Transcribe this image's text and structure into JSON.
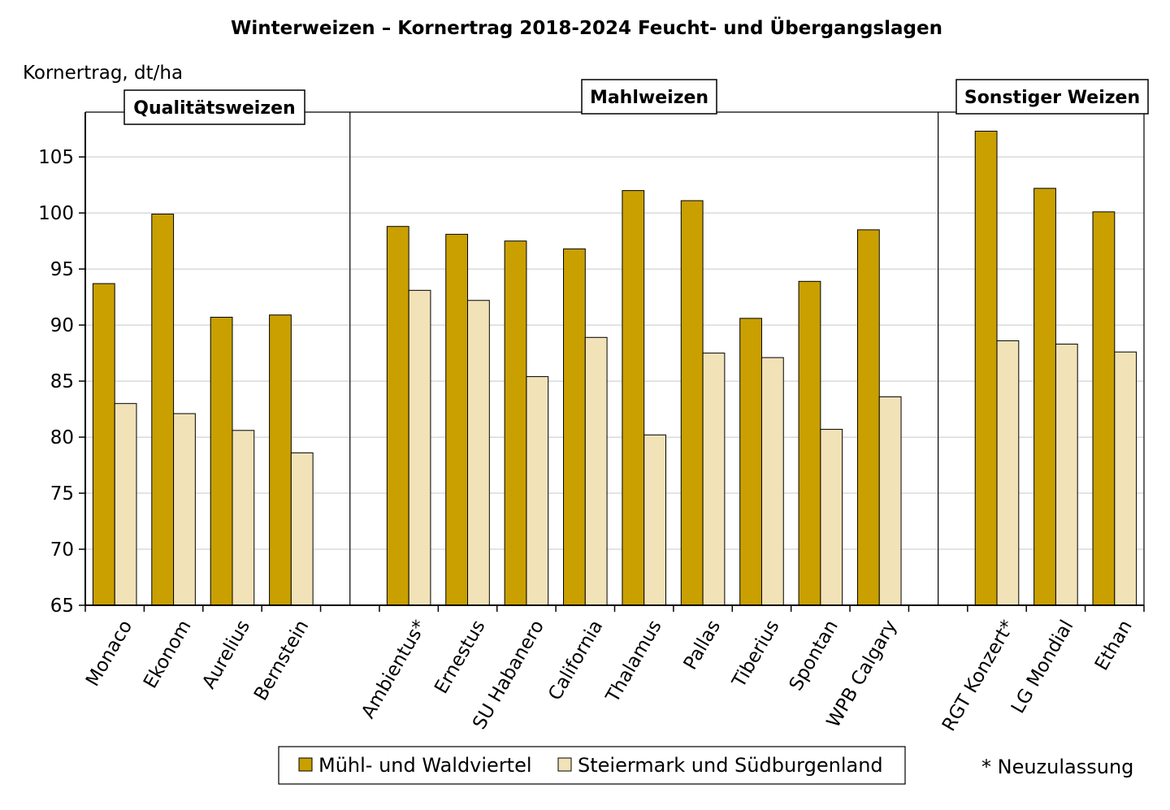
{
  "chart_data": {
    "type": "bar",
    "title": "Winterweizen – Kornertrag 2018-2024 Feucht- und Übergangslagen",
    "ylabel": "Kornertrag, dt/ha",
    "xlabel": "",
    "ylim": [
      65,
      109
    ],
    "yticks": [
      65,
      70,
      75,
      80,
      85,
      90,
      95,
      100,
      105
    ],
    "grid": true,
    "legend_position": "bottom",
    "groups": [
      {
        "label": "Qualitätsweizen",
        "categories": [
          "Monaco",
          "Ekonom",
          "Aurelius",
          "Bernstein"
        ]
      },
      {
        "label": "Mahlweizen",
        "categories": [
          "Ambientus*",
          "Ernestus",
          "SU Habanero",
          "California",
          "Thalamus",
          "Pallas",
          "Tiberius",
          "Spontan",
          "WPB Calgary"
        ]
      },
      {
        "label": "Sonstiger Weizen",
        "categories": [
          "RGT Konzert*",
          "LG Mondial",
          "Ethan"
        ]
      }
    ],
    "categories": [
      "Monaco",
      "Ekonom",
      "Aurelius",
      "Bernstein",
      "Ambientus*",
      "Ernestus",
      "SU Habanero",
      "California",
      "Thalamus",
      "Pallas",
      "Tiberius",
      "Spontan",
      "WPB Calgary",
      "RGT Konzert*",
      "LG Mondial",
      "Ethan"
    ],
    "series": [
      {
        "name": "Mühl- und Waldviertel",
        "color": "#C9A000",
        "values": [
          93.7,
          99.9,
          90.7,
          90.9,
          98.8,
          98.1,
          97.5,
          96.8,
          102.0,
          101.1,
          90.6,
          93.9,
          98.5,
          107.3,
          102.2,
          100.1
        ]
      },
      {
        "name": "Steiermark und Südburgenland",
        "color": "#F2E2B8",
        "values": [
          83.0,
          82.1,
          80.6,
          78.6,
          93.1,
          92.2,
          85.4,
          88.9,
          80.2,
          87.5,
          87.1,
          80.7,
          83.6,
          88.6,
          88.3,
          87.6
        ]
      }
    ],
    "note": "* Neuzulassung"
  }
}
